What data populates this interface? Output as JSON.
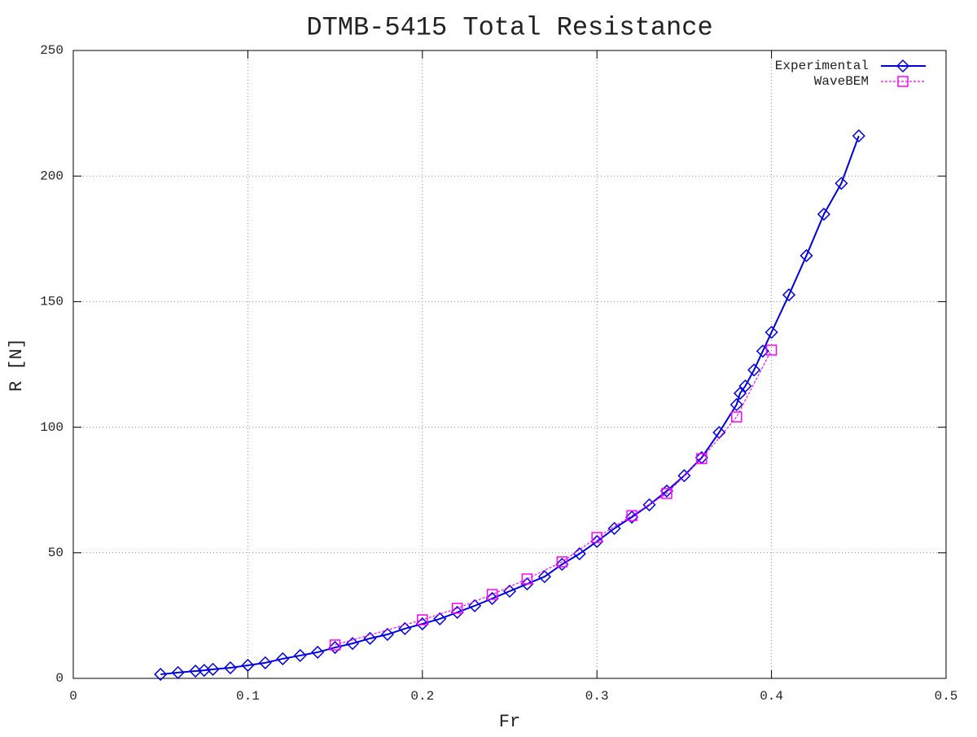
{
  "chart_data": {
    "type": "line",
    "title": "DTMB-5415 Total Resistance",
    "x_label": "Fr",
    "y_label": "R [N]",
    "xlim": [
      0,
      0.5
    ],
    "xticks": [
      0,
      0.1,
      0.2,
      0.3,
      0.4,
      0.5
    ],
    "ylim": [
      0,
      250
    ],
    "yticks": [
      0,
      50,
      100,
      150,
      200,
      250
    ],
    "grid": true,
    "legend": "top-right",
    "series": [
      {
        "name": "Experimental",
        "color": "#0000e0",
        "marker": "diamond",
        "dashed": false,
        "x": [
          0.05,
          0.06,
          0.07,
          0.075,
          0.08,
          0.09,
          0.1,
          0.11,
          0.12,
          0.13,
          0.14,
          0.15,
          0.16,
          0.17,
          0.18,
          0.19,
          0.2,
          0.21,
          0.22,
          0.23,
          0.24,
          0.25,
          0.26,
          0.27,
          0.28,
          0.29,
          0.3,
          0.31,
          0.32,
          0.33,
          0.34,
          0.35,
          0.36,
          0.37,
          0.38,
          0.382,
          0.385,
          0.39,
          0.395,
          0.4,
          0.41,
          0.42,
          0.43,
          0.44,
          0.45
        ],
        "values": [
          1.6,
          2.3,
          2.9,
          3.2,
          3.6,
          4.2,
          5.2,
          6.2,
          7.8,
          9.1,
          10.4,
          12.3,
          13.9,
          15.9,
          17.5,
          19.8,
          21.7,
          23.7,
          26.3,
          28.9,
          31.8,
          34.7,
          37.6,
          40.5,
          45.4,
          49.6,
          54.5,
          59.7,
          64.2,
          69.1,
          74.6,
          80.7,
          87.9,
          97.9,
          109,
          113.5,
          116.4,
          122.8,
          130.3,
          137.8,
          152.7,
          168.3,
          184.8,
          197.1,
          216
        ]
      },
      {
        "name": "WaveBEM",
        "color": "#ff00ff",
        "marker": "square",
        "dashed": true,
        "x": [
          0.15,
          0.2,
          0.22,
          0.24,
          0.26,
          0.28,
          0.3,
          0.32,
          0.34,
          0.36,
          0.38,
          0.4
        ],
        "values": [
          13.3,
          23.3,
          27.9,
          33.4,
          39.6,
          46.4,
          56.1,
          64.8,
          73.6,
          87.5,
          104.1,
          130.7
        ]
      }
    ]
  }
}
